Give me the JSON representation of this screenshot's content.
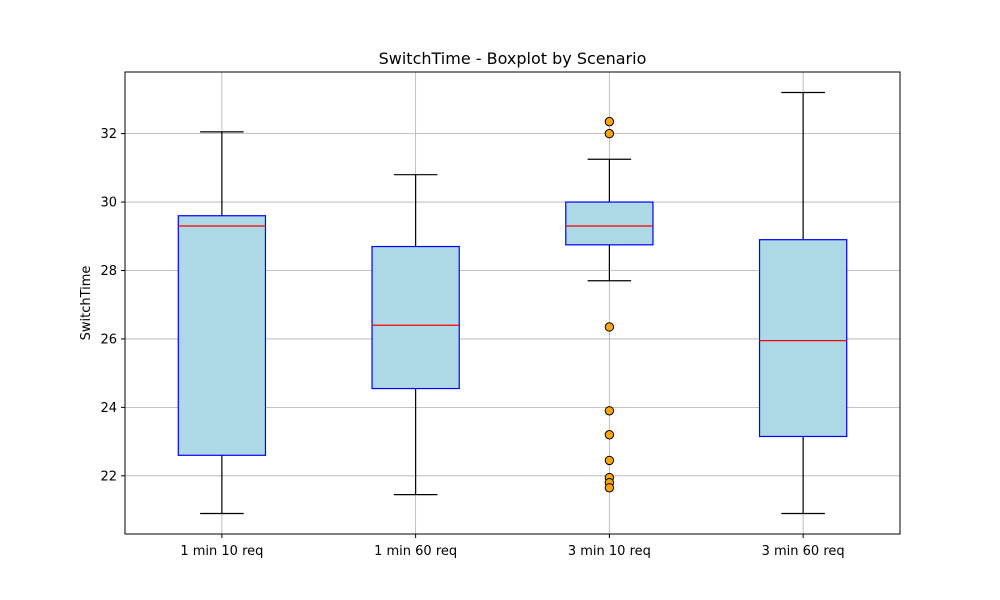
{
  "chart_data": {
    "type": "boxplot",
    "title": "SwitchTime - Boxplot by Scenario",
    "xlabel": "",
    "ylabel": "SwitchTime",
    "categories": [
      "1 min 10 req",
      "1 min 60 req",
      "3 min 10 req",
      "3 min 60 req"
    ],
    "ylim": [
      20.3,
      33.8
    ],
    "yticks": [
      22,
      24,
      26,
      28,
      30,
      32
    ],
    "yticklabels": [
      "22",
      "24",
      "26",
      "28",
      "30",
      "32"
    ],
    "grid": true,
    "boxes": [
      {
        "category": "1 min 10 req",
        "whisker_low": 20.9,
        "q1": 22.6,
        "median": 29.3,
        "q3": 29.6,
        "whisker_high": 32.05,
        "outliers": []
      },
      {
        "category": "1 min 60 req",
        "whisker_low": 21.45,
        "q1": 24.55,
        "median": 26.4,
        "q3": 28.7,
        "whisker_high": 30.8,
        "outliers": []
      },
      {
        "category": "3 min 10 req",
        "whisker_low": 27.7,
        "q1": 28.75,
        "median": 29.3,
        "q3": 30.0,
        "whisker_high": 31.25,
        "outliers": [
          32.35,
          32.0,
          26.35,
          23.9,
          23.2,
          22.45,
          21.95,
          21.8,
          21.65
        ]
      },
      {
        "category": "3 min 60 req",
        "whisker_low": 20.9,
        "q1": 23.15,
        "median": 25.95,
        "q3": 28.9,
        "whisker_high": 33.2,
        "outliers": []
      }
    ],
    "colors": {
      "box_fill": "#add8e6",
      "box_edge": "#0000ff",
      "median": "#ff0000",
      "whisker": "#000000",
      "outlier_fill": "#ffa500",
      "outlier_edge": "#000000",
      "grid": "#b0b0b0"
    }
  }
}
